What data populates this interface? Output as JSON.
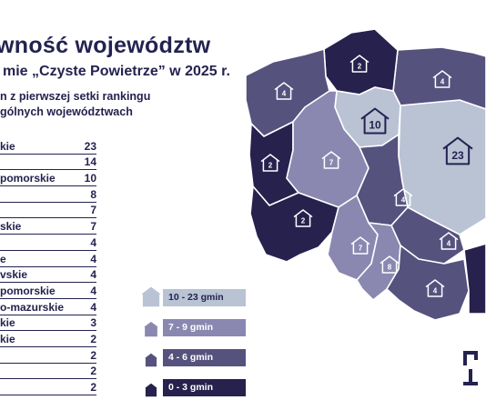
{
  "header": {
    "title": "wność województw",
    "subtitle": "mie „Czyste Powietrze” w 2025 r.",
    "note_line1": "n z pierwszej setki rankingu",
    "note_line2": "gólnych województwach"
  },
  "ranking": [
    {
      "name": "kie",
      "value": "23"
    },
    {
      "name": "",
      "value": "14"
    },
    {
      "name": "pomorskie",
      "value": "10"
    },
    {
      "name": "",
      "value": "8"
    },
    {
      "name": "",
      "value": "7"
    },
    {
      "name": "skie",
      "value": "7"
    },
    {
      "name": "",
      "value": "4"
    },
    {
      "name": "e",
      "value": "4"
    },
    {
      "name": "vskie",
      "value": "4"
    },
    {
      "name": "pomorskie",
      "value": "4"
    },
    {
      "name": "o-mazurskie",
      "value": "4"
    },
    {
      "name": "kie",
      "value": "3"
    },
    {
      "name": "kie",
      "value": "2"
    },
    {
      "name": "",
      "value": "2"
    },
    {
      "name": "",
      "value": "2"
    },
    {
      "name": "",
      "value": "2"
    }
  ],
  "map_labels": [
    {
      "id": "pomorskie",
      "value": "2",
      "tier": "0-3"
    },
    {
      "id": "zachodniopomorskie",
      "value": "4",
      "tier": "4-6"
    },
    {
      "id": "warminsko-mazurskie",
      "value": "4",
      "tier": "4-6"
    },
    {
      "id": "kujawsko-pomorskie",
      "value": "10",
      "tier": "10-23"
    },
    {
      "id": "mazowieckie",
      "value": "23",
      "tier": "10-23"
    },
    {
      "id": "wielkopolskie",
      "value": "7",
      "tier": "7-9"
    },
    {
      "id": "lubuskie",
      "value": "2",
      "tier": "0-3"
    },
    {
      "id": "lodzkie",
      "value": "4",
      "tier": "4-6"
    },
    {
      "id": "dolnoslaskie",
      "value": "2",
      "tier": "0-3"
    },
    {
      "id": "swietokrzyskie",
      "value": "4",
      "tier": "4-6"
    },
    {
      "id": "opolskie",
      "value": "7",
      "tier": "7-9"
    },
    {
      "id": "slaskie",
      "value": "8",
      "tier": "7-9"
    },
    {
      "id": "malopolskie",
      "value": "4",
      "tier": "4-6"
    }
  ],
  "legend": [
    {
      "label": "10 - 23 gmin",
      "color": "#b9c3d4"
    },
    {
      "label": "7 - 9 gmin",
      "color": "#8a88b0"
    },
    {
      "label": "4 - 6 gmin",
      "color": "#56527e"
    },
    {
      "label": "0 - 3 gmin",
      "color": "#26214d"
    }
  ],
  "colors": {
    "tier_10_23": "#b9c3d4",
    "tier_7_9": "#8a88b0",
    "tier_4_6": "#56527e",
    "tier_0_3": "#26214d",
    "text": "#24224f"
  },
  "icons": {
    "house": "house-icon",
    "brand": "brand-logo"
  }
}
